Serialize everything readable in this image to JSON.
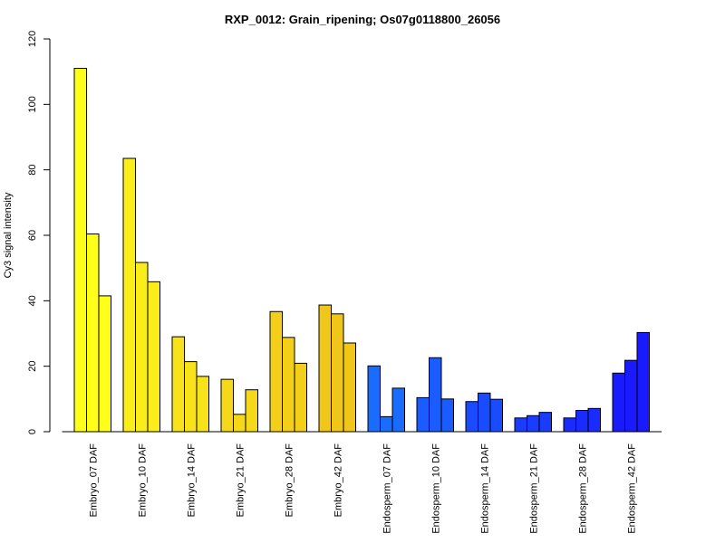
{
  "chart_data": {
    "type": "bar",
    "title": "RXP_0012: Grain_ripening; Os07g0118800_26056",
    "xlabel": "",
    "ylabel": "Cy3 signal intensity",
    "ylim": [
      0,
      120
    ],
    "yticks": [
      0,
      20,
      40,
      60,
      80,
      100,
      120
    ],
    "grid": false,
    "categories": [
      "Embryo_07 DAF",
      "Embryo_10 DAF",
      "Embryo_14 DAF",
      "Embryo_21 DAF",
      "Embryo_28 DAF",
      "Embryo_42 DAF",
      "Endosperm_07 DAF",
      "Endosperm_10 DAF",
      "Endosperm_14 DAF",
      "Endosperm_21 DAF",
      "Endosperm_28 DAF",
      "Endosperm_42 DAF"
    ],
    "group_colors": [
      "#ffff1a",
      "#fbed1a",
      "#f8e21a",
      "#f5d81a",
      "#f3cf1a",
      "#f0c61a",
      "#1a6cff",
      "#1a5cff",
      "#1a4cff",
      "#1a3cff",
      "#1a2bff",
      "#1a1aff"
    ],
    "values": [
      [
        111.0,
        60.4,
        41.5
      ],
      [
        83.5,
        51.7,
        45.8
      ],
      [
        29.0,
        21.4,
        16.9
      ],
      [
        16.0,
        5.3,
        12.8
      ],
      [
        36.7,
        28.8,
        20.9
      ],
      [
        38.7,
        36.0,
        27.1
      ],
      [
        20.1,
        4.6,
        13.3
      ],
      [
        10.4,
        22.6,
        10.0
      ],
      [
        9.2,
        11.8,
        9.9
      ],
      [
        4.2,
        4.9,
        5.9
      ],
      [
        4.2,
        6.5,
        7.1
      ],
      [
        17.9,
        21.8,
        30.3
      ]
    ]
  }
}
